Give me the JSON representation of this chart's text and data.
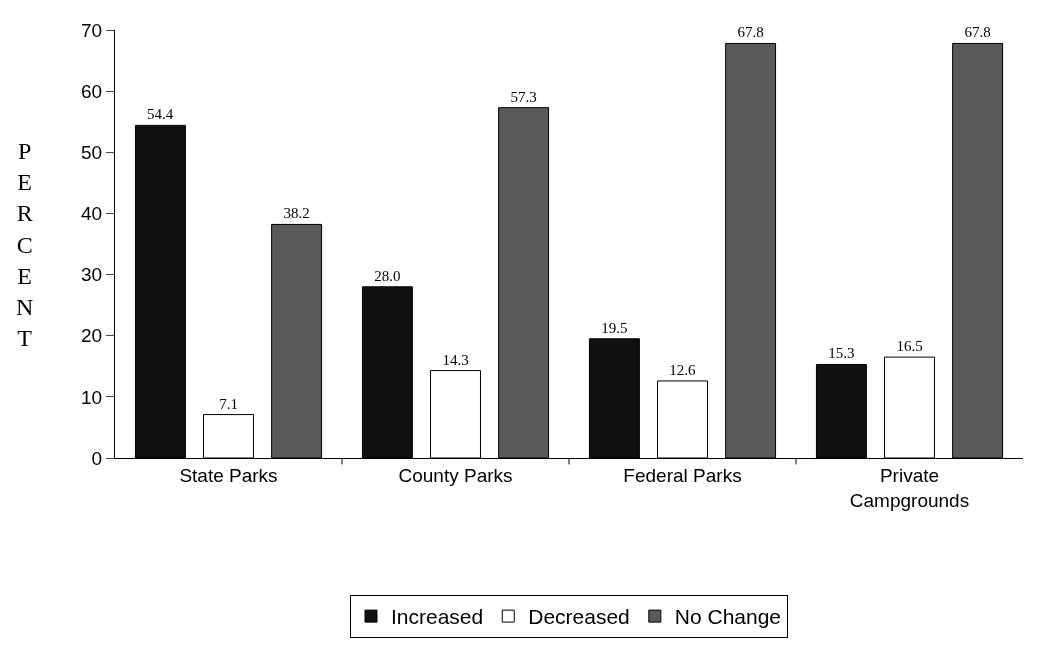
{
  "chart_data": {
    "type": "bar",
    "ylabel": "PERCENT",
    "categories": [
      "State Parks",
      "County Parks",
      "Federal Parks",
      "Private Campgrounds"
    ],
    "series": [
      {
        "name": "Increased",
        "color": "#111111",
        "values": [
          54.4,
          28.0,
          19.5,
          15.3
        ],
        "value_labels": [
          "54.4",
          "28.0",
          "19.5",
          "15.3"
        ]
      },
      {
        "name": "Decreased",
        "color": "#ffffff",
        "values": [
          7.1,
          14.3,
          12.6,
          16.5
        ],
        "value_labels": [
          "7.1",
          "14.3",
          "12.6",
          "16.5"
        ]
      },
      {
        "name": "No Change",
        "color": "#5a5a5a",
        "values": [
          38.2,
          57.3,
          67.8,
          67.8
        ],
        "value_labels": [
          "38.2",
          "57.3",
          "67.8",
          "67.8"
        ]
      }
    ],
    "ylim": [
      0,
      70
    ],
    "yticks": [
      0,
      10,
      20,
      30,
      40,
      50,
      60,
      70
    ],
    "legend": "bottom"
  }
}
